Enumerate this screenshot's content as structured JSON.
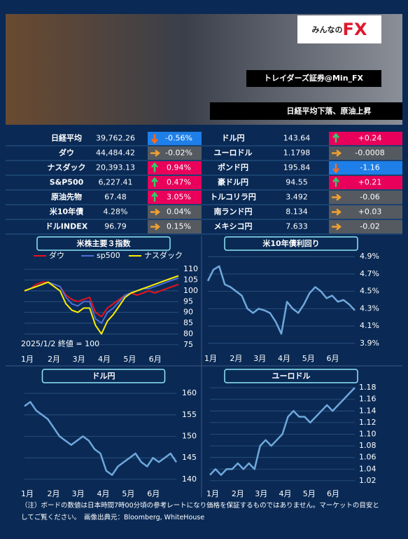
{
  "header": {
    "logo_prefix": "みんなの",
    "logo_suffix": "FX",
    "source": "トレイダーズ証券@Min_FX",
    "headline": "日経平均下落、原油上昇"
  },
  "table": {
    "rows": [
      [
        {
          "name": "日経平均",
          "value": "39,762.26",
          "change": "-0.56%",
          "trend": "down"
        },
        {
          "name": "ドル円",
          "value": "143.64",
          "change": "+0.24",
          "trend": "up"
        }
      ],
      [
        {
          "name": "ダウ",
          "value": "44,484.42",
          "change": "-0.02%",
          "trend": "flat"
        },
        {
          "name": "ユーロドル",
          "value": "1.1798",
          "change": "-0.0008",
          "trend": "flat"
        }
      ],
      [
        {
          "name": "ナスダック",
          "value": "20,393.13",
          "change": "0.94%",
          "trend": "up"
        },
        {
          "name": "ポンド円",
          "value": "195.84",
          "change": "-1.16",
          "trend": "down"
        }
      ],
      [
        {
          "name": "S&P500",
          "value": "6,227.41",
          "change": "0.47%",
          "trend": "up"
        },
        {
          "name": "豪ドル円",
          "value": "94.55",
          "change": "+0.21",
          "trend": "up"
        }
      ],
      [
        {
          "name": "原油先物",
          "value": "67.48",
          "change": "3.05%",
          "trend": "up"
        },
        {
          "name": "トルコリラ円",
          "value": "3.492",
          "change": "-0.06",
          "trend": "flat"
        }
      ],
      [
        {
          "name": "米10年債",
          "value": "4.28%",
          "change": "0.04%",
          "trend": "flat"
        },
        {
          "name": "南ランド円",
          "value": "8.134",
          "change": "+0.03",
          "trend": "flat"
        }
      ],
      [
        {
          "name": "ドルINDEX",
          "value": "96.79",
          "change": "0.15%",
          "trend": "flat"
        },
        {
          "name": "メキシコ円",
          "value": "7.633",
          "change": "-0.02",
          "trend": "flat"
        }
      ]
    ]
  },
  "chart_data": [
    {
      "type": "line",
      "title": "米株主要３指数",
      "annotation": "2025/1/2 終値 = 100",
      "grid": true,
      "xlim": [
        0,
        26
      ],
      "xticks": [
        {
          "value": 0,
          "label": "1月"
        },
        {
          "value": 4.5,
          "label": "2月"
        },
        {
          "value": 8.7,
          "label": "3月"
        },
        {
          "value": 13,
          "label": "4月"
        },
        {
          "value": 17.3,
          "label": "5月"
        },
        {
          "value": 21.6,
          "label": "6月"
        }
      ],
      "ylim": [
        73,
        112
      ],
      "yticks": [
        75,
        80,
        85,
        90,
        95,
        100,
        105,
        110
      ],
      "series": [
        {
          "name": "ダウ",
          "color": "#e8121e",
          "values": [
            100,
            101,
            103,
            104,
            104,
            103,
            102,
            98,
            96,
            95,
            96,
            97,
            90,
            88,
            92,
            94,
            96,
            98,
            99,
            98,
            99,
            100,
            99,
            100,
            101,
            102,
            103
          ]
        },
        {
          "name": "sp500",
          "color": "#4a6fd8",
          "values": [
            100,
            101,
            102,
            103,
            104,
            103,
            102,
            97,
            94,
            93,
            95,
            95,
            87,
            85,
            90,
            92,
            95,
            98,
            99,
            100,
            101,
            101,
            102,
            103,
            104,
            105,
            106
          ]
        },
        {
          "name": "ナスダック",
          "color": "#ffee00",
          "values": [
            100,
            101,
            102,
            103,
            104,
            102,
            100,
            94,
            91,
            90,
            92,
            92,
            84,
            80,
            86,
            89,
            93,
            97,
            99,
            100,
            101,
            102,
            103,
            104,
            105,
            106,
            107
          ]
        }
      ]
    },
    {
      "type": "line",
      "title": "米10年債利回り",
      "grid": true,
      "xlim": [
        0,
        26
      ],
      "xticks": [
        {
          "value": 0,
          "label": "1月"
        },
        {
          "value": 4.5,
          "label": "2月"
        },
        {
          "value": 8.7,
          "label": "3月"
        },
        {
          "value": 13,
          "label": "4月"
        },
        {
          "value": 17.3,
          "label": "5月"
        },
        {
          "value": 21.6,
          "label": "6月"
        }
      ],
      "ylim": [
        3.85,
        4.95
      ],
      "yticks": [
        {
          "value": 3.9,
          "label": "3.9%"
        },
        {
          "value": 4.1,
          "label": "4.1%"
        },
        {
          "value": 4.3,
          "label": "4.3%"
        },
        {
          "value": 4.5,
          "label": "4.5%"
        },
        {
          "value": 4.7,
          "label": "4.7%"
        },
        {
          "value": 4.9,
          "label": "4.9%"
        }
      ],
      "series": [
        {
          "name": "米10年債",
          "color": "#6fa8dc",
          "values": [
            4.62,
            4.75,
            4.79,
            4.58,
            4.55,
            4.5,
            4.45,
            4.3,
            4.25,
            4.3,
            4.28,
            4.25,
            4.15,
            4.01,
            4.38,
            4.3,
            4.25,
            4.35,
            4.48,
            4.55,
            4.5,
            4.42,
            4.45,
            4.38,
            4.4,
            4.35,
            4.28
          ]
        }
      ]
    },
    {
      "type": "line",
      "title": "ドル円",
      "grid": true,
      "xlim": [
        0,
        26
      ],
      "xticks": [
        {
          "value": 0,
          "label": "1月"
        },
        {
          "value": 4.5,
          "label": "2月"
        },
        {
          "value": 8.7,
          "label": "3月"
        },
        {
          "value": 13,
          "label": "4月"
        },
        {
          "value": 17.3,
          "label": "5月"
        },
        {
          "value": 21.6,
          "label": "6月"
        }
      ],
      "ylim": [
        139,
        161
      ],
      "yticks": [
        140,
        145,
        150,
        155,
        160
      ],
      "series": [
        {
          "name": "ドル円",
          "color": "#6fa8dc",
          "values": [
            157,
            158,
            156,
            155,
            154,
            152,
            150,
            149,
            148,
            149,
            150,
            149,
            147,
            146,
            142,
            141,
            143,
            144,
            145,
            146,
            144,
            143,
            145,
            144,
            145,
            146,
            144
          ]
        }
      ]
    },
    {
      "type": "line",
      "title": "ユーロドル",
      "grid": true,
      "xlim": [
        0,
        26
      ],
      "xticks": [
        {
          "value": 0,
          "label": "1月"
        },
        {
          "value": 4.5,
          "label": "2月"
        },
        {
          "value": 8.7,
          "label": "3月"
        },
        {
          "value": 13,
          "label": "4月"
        },
        {
          "value": 17.3,
          "label": "5月"
        },
        {
          "value": 21.6,
          "label": "6月"
        }
      ],
      "ylim": [
        1.015,
        1.185
      ],
      "yticks": [
        1.02,
        1.04,
        1.06,
        1.08,
        {
          "value": 1.1,
          "label": "1.10"
        },
        1.12,
        1.14,
        1.16,
        1.18
      ],
      "series": [
        {
          "name": "ユーロドル",
          "color": "#6fa8dc",
          "values": [
            1.03,
            1.04,
            1.03,
            1.04,
            1.04,
            1.05,
            1.04,
            1.05,
            1.04,
            1.08,
            1.09,
            1.08,
            1.09,
            1.1,
            1.13,
            1.14,
            1.13,
            1.13,
            1.12,
            1.13,
            1.14,
            1.15,
            1.14,
            1.15,
            1.16,
            1.17,
            1.18
          ]
        }
      ]
    }
  ],
  "footnote": "（注）ボードの数値は日本時間7時00分頃の参考レートになり価格を保証するものではありません。マーケットの目安としてご覧ください。　画像出典元：Bloomberg, WhiteHouse"
}
